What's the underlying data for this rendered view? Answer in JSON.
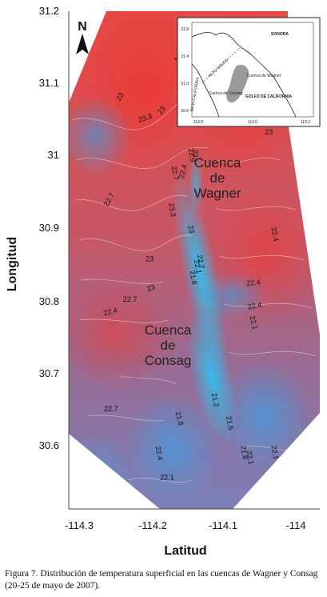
{
  "caption": "Figura 7. Distribución de temperatura superficial en las cuencas de Wagner y Consag (20-25 de mayo de 2007).",
  "colors": {
    "warm": "#e8403e",
    "mid": "#8a6fa3",
    "cool": "#5d94cf",
    "channel": "#35b8ea",
    "contour": "#f5d9dc"
  },
  "chart_data": {
    "type": "heatmap",
    "title": "",
    "xlabel": "Latitud",
    "ylabel": "Longitud",
    "xlim": [
      -114.33,
      -113.96
    ],
    "ylim": [
      30.51,
      31.2
    ],
    "x_ticks": [
      -114.3,
      -114.2,
      -114.1,
      -114.0
    ],
    "x_tick_labels": [
      "-114.3",
      "-114.2",
      "-114.1",
      "-114"
    ],
    "y_ticks": [
      30.6,
      30.7,
      30.8,
      30.9,
      31.0,
      31.1,
      31.2
    ],
    "y_tick_labels": [
      "30.6",
      "30.7",
      "30.8",
      "30.9",
      "31",
      "31.1",
      "31.2"
    ],
    "north_label": "N",
    "region_labels": [
      {
        "lines": [
          "Cuenca",
          "de",
          "Wagner"
        ],
        "x": -114.095,
        "y": 30.98
      },
      {
        "lines": [
          "Cuenca",
          "de",
          "Consag"
        ],
        "x": -114.168,
        "y": 30.73
      }
    ],
    "contour_labels": [
      {
        "text": "23",
        "x": -114.239,
        "y": 31.083,
        "rot": -60
      },
      {
        "text": "23.3",
        "x": -114.206,
        "y": 31.052,
        "rot": -20
      },
      {
        "text": "23",
        "x": -114.182,
        "y": 31.064,
        "rot": -55
      },
      {
        "text": "23",
        "x": -114.164,
        "y": 31.134,
        "rot": 50
      },
      {
        "text": "23",
        "x": -114.142,
        "y": 31.006,
        "rot": 90
      },
      {
        "text": "22.9",
        "x": -114.146,
        "y": 31.003,
        "rot": 80
      },
      {
        "text": "22.7",
        "x": -114.169,
        "y": 30.978,
        "rot": 80
      },
      {
        "text": "22.4",
        "x": -114.152,
        "y": 30.98,
        "rot": -75
      },
      {
        "text": "23.3",
        "x": -114.173,
        "y": 30.927,
        "rot": 80
      },
      {
        "text": "22.7",
        "x": -114.254,
        "y": 30.94,
        "rot": -60
      },
      {
        "text": "23",
        "x": -114.147,
        "y": 30.9,
        "rot": 80
      },
      {
        "text": "22.7",
        "x": -114.134,
        "y": 30.855,
        "rot": 80
      },
      {
        "text": "22.1",
        "x": -114.138,
        "y": 30.848,
        "rot": 80
      },
      {
        "text": "21.8",
        "x": -114.144,
        "y": 30.833,
        "rot": 80
      },
      {
        "text": "23",
        "x": -114.201,
        "y": 30.856,
        "rot": 0
      },
      {
        "text": "23",
        "x": -114.198,
        "y": 30.816,
        "rot": -20
      },
      {
        "text": "22.7",
        "x": -114.228,
        "y": 30.8,
        "rot": 0
      },
      {
        "text": "22.4",
        "x": -114.254,
        "y": 30.783,
        "rot": -15
      },
      {
        "text": "22.4",
        "x": -114.058,
        "y": 30.823,
        "rot": -5
      },
      {
        "text": "22.4",
        "x": -114.056,
        "y": 30.791,
        "rot": -10
      },
      {
        "text": "22.1",
        "x": -114.061,
        "y": 30.77,
        "rot": 75
      },
      {
        "text": "22.4",
        "x": -114.032,
        "y": 30.893,
        "rot": 80
      },
      {
        "text": "23",
        "x": -114.037,
        "y": 31.032,
        "rot": 0
      },
      {
        "text": "22.7",
        "x": -114.254,
        "y": 30.648,
        "rot": 0
      },
      {
        "text": "21.8",
        "x": -114.163,
        "y": 30.637,
        "rot": 75
      },
      {
        "text": "21.2",
        "x": -114.114,
        "y": 30.663,
        "rot": 80
      },
      {
        "text": "21.5",
        "x": -114.094,
        "y": 30.631,
        "rot": 80
      },
      {
        "text": "22.4",
        "x": -114.191,
        "y": 30.589,
        "rot": 80
      },
      {
        "text": "21.8",
        "x": -114.074,
        "y": 30.59,
        "rot": 80
      },
      {
        "text": "22.1",
        "x": -114.066,
        "y": 30.583,
        "rot": 80
      },
      {
        "text": "22.1",
        "x": -114.032,
        "y": 30.59,
        "rot": 80
      },
      {
        "text": "22.1",
        "x": -114.177,
        "y": 30.553,
        "rot": 0
      }
    ],
    "inset": {
      "labels": [
        "SONORA",
        "BAJA CALIFORNIA",
        "ALTO GOLFO",
        "Cuenca de Wagner",
        "Cuenca de Consag",
        "GOLFO DE CALIFORNIA"
      ],
      "x_ticks": [
        "114.8",
        "114.0",
        "113.2"
      ],
      "y_ticks": [
        "31.8",
        "31.4",
        "31.0",
        "30.6"
      ]
    }
  }
}
